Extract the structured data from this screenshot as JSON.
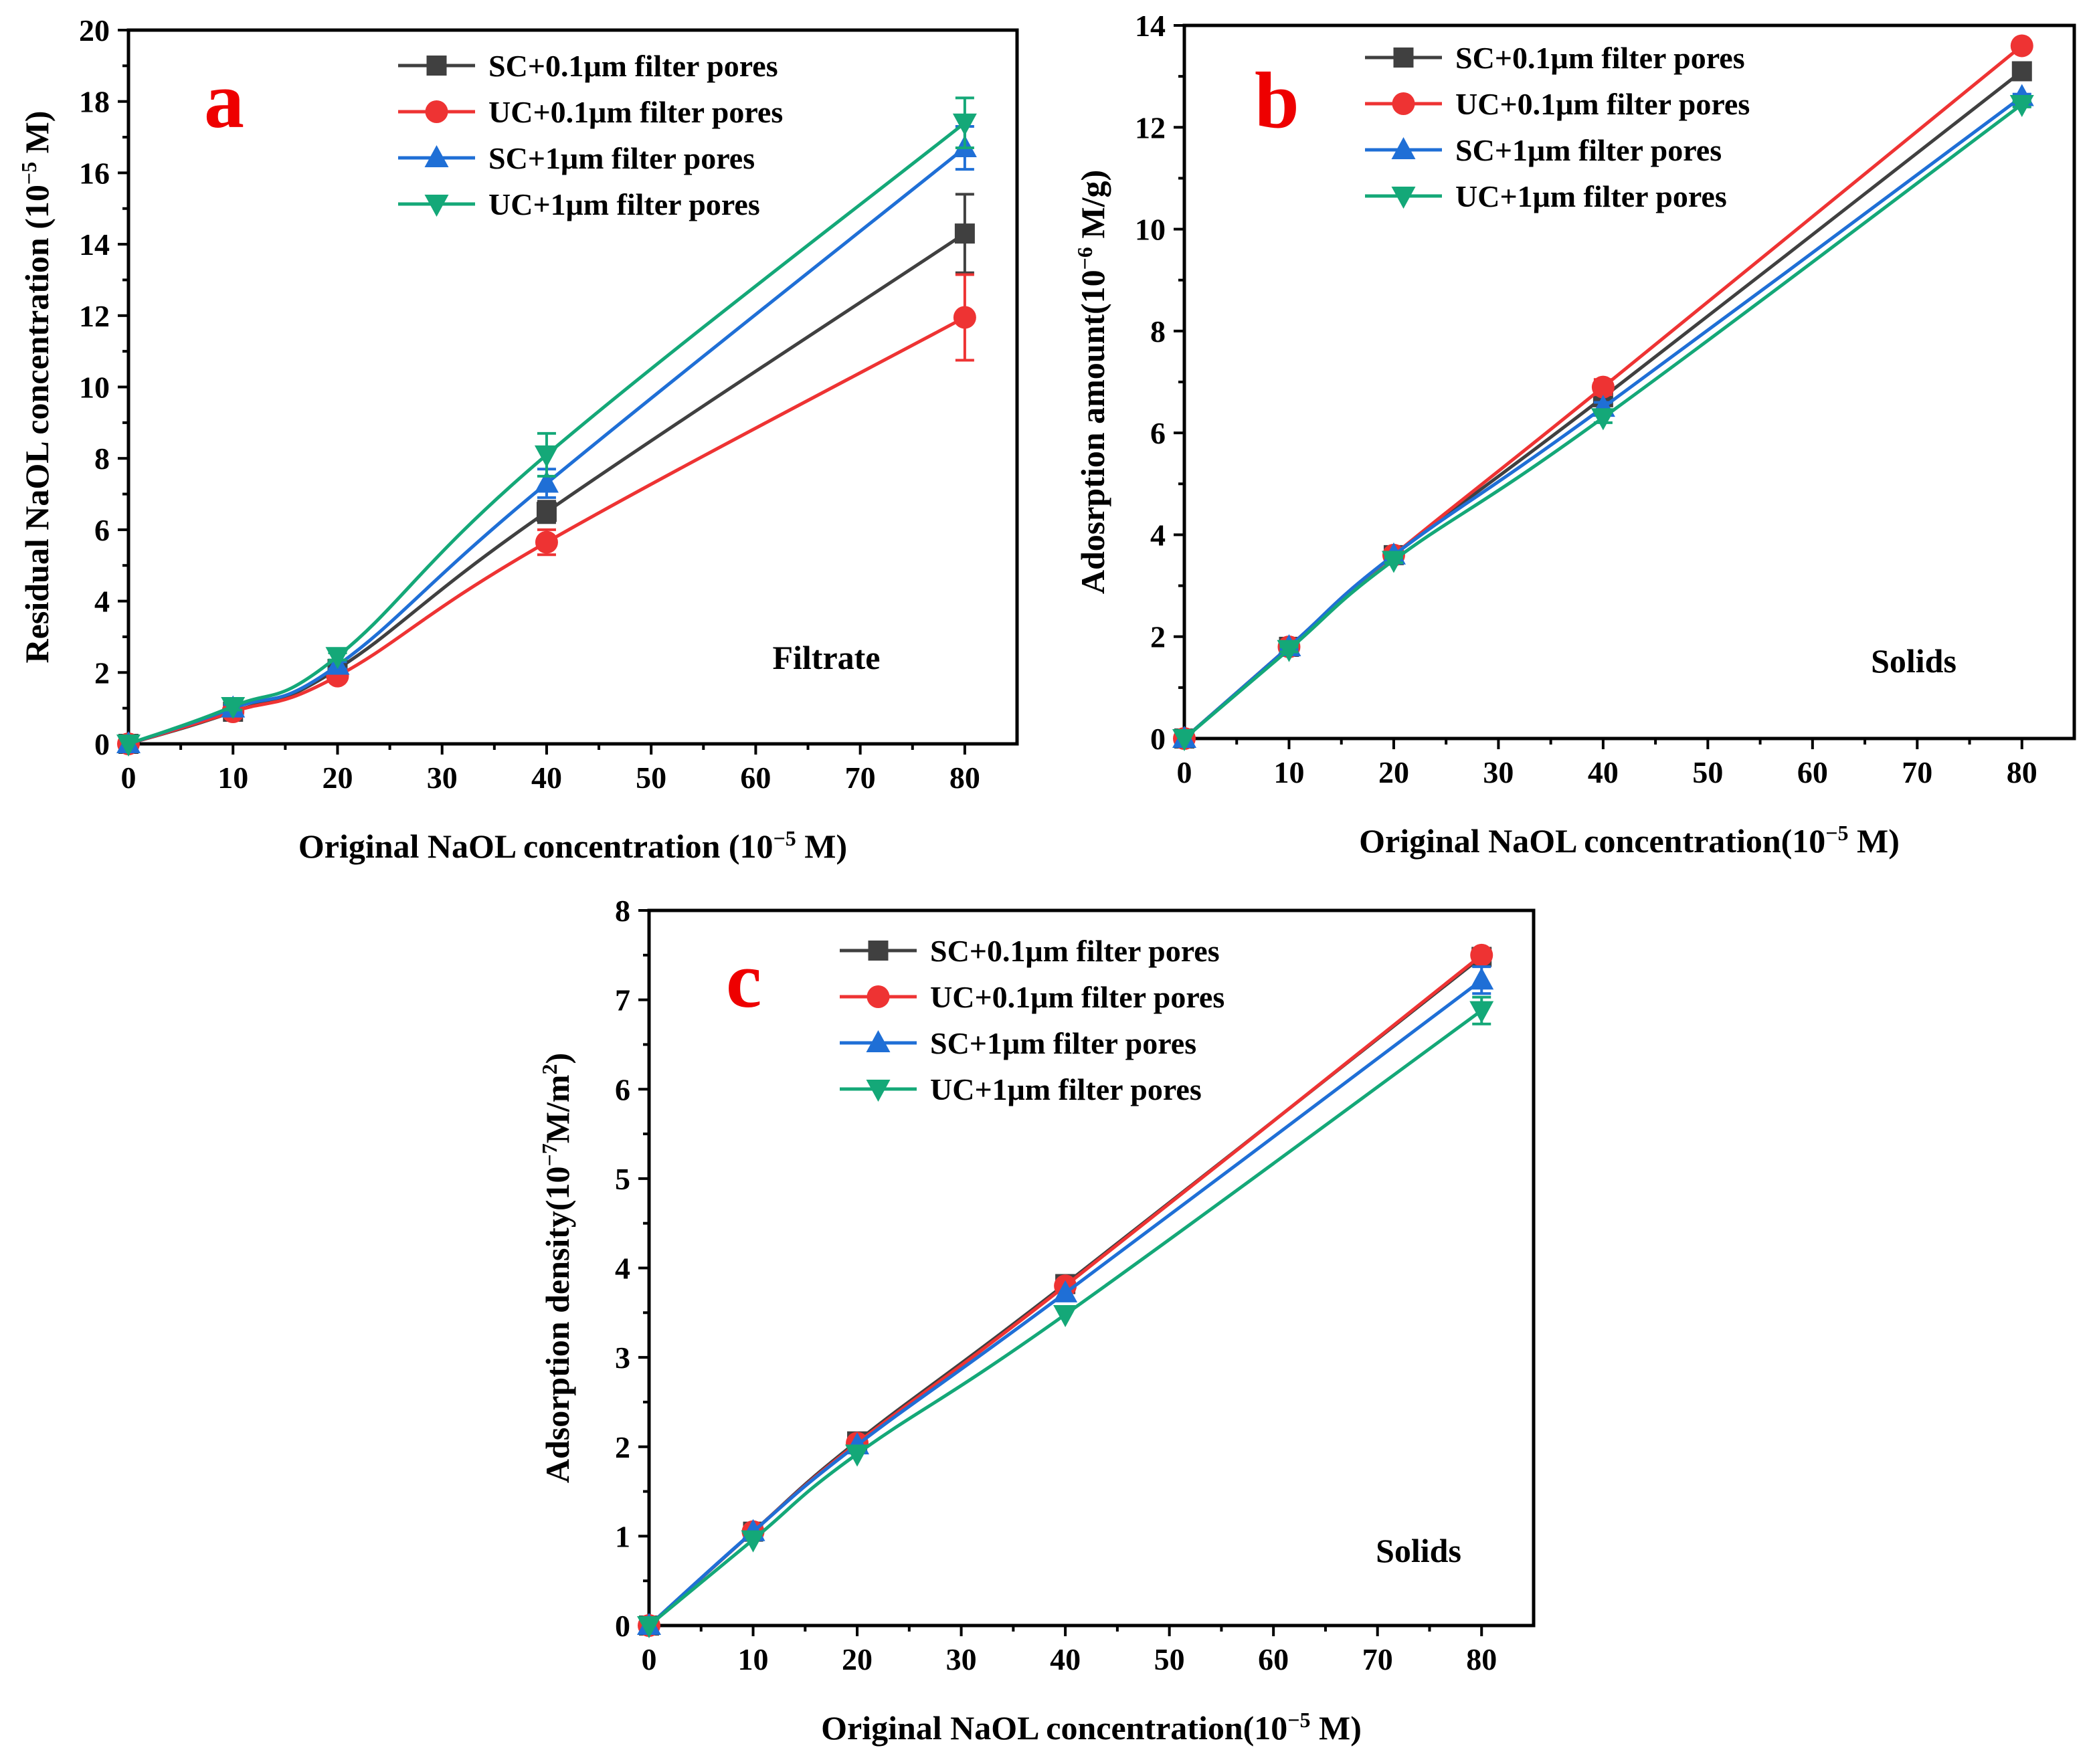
{
  "colors": {
    "SC01": "#404040",
    "UC01": "#ee3333",
    "SC1": "#1f6fd6",
    "UC1": "#14a878"
  },
  "chart_data": [
    {
      "panel": "a",
      "type": "line",
      "annotation": "Filtrate",
      "xlabel": "Original NaOL concentration (10",
      "xlabel_sup": "−5",
      "xlabel_tail": " M)",
      "ylabel": "Residual NaOL concentration  (10",
      "ylabel_sup": "−5",
      "ylabel_tail": " M)",
      "xlim": [
        0,
        85
      ],
      "ylim": [
        0,
        20
      ],
      "xticks": [
        0,
        10,
        20,
        30,
        40,
        50,
        60,
        70,
        80
      ],
      "yticks": [
        0,
        2,
        4,
        6,
        8,
        10,
        12,
        14,
        16,
        18,
        20
      ],
      "x": [
        0,
        10,
        20,
        40,
        80
      ],
      "legend_position": "top-center",
      "series": [
        {
          "name": "SC+0.1μm filter pores",
          "color": "#404040",
          "marker": "square",
          "values": [
            0,
            0.9,
            2.1,
            6.5,
            14.3
          ],
          "errors": [
            0,
            0.1,
            0.1,
            0.3,
            1.1
          ]
        },
        {
          "name": "UC+0.1μm filter pores",
          "color": "#ee3333",
          "marker": "circle",
          "values": [
            0,
            0.9,
            1.9,
            5.65,
            11.95
          ],
          "errors": [
            0,
            0.1,
            0.1,
            0.35,
            1.2
          ]
        },
        {
          "name": "SC+1μm filter pores",
          "color": "#1f6fd6",
          "marker": "triangle-up",
          "values": [
            0,
            1.0,
            2.2,
            7.3,
            16.7
          ],
          "errors": [
            0,
            0.1,
            0.1,
            0.4,
            0.6
          ]
        },
        {
          "name": "UC+1μm filter pores",
          "color": "#14a878",
          "marker": "triangle-down",
          "values": [
            0,
            1.05,
            2.45,
            8.1,
            17.4
          ],
          "errors": [
            0,
            0.1,
            0.1,
            0.6,
            0.7
          ]
        }
      ]
    },
    {
      "panel": "b",
      "type": "line",
      "annotation": "Solids",
      "xlabel": "Original NaOL concentration(10",
      "xlabel_sup": "−5",
      "xlabel_tail": " M)",
      "ylabel": "Adosrption amount(10",
      "ylabel_sup": "−6",
      "ylabel_tail": " M/g)",
      "xlim": [
        0,
        85
      ],
      "ylim": [
        0,
        14
      ],
      "xticks": [
        0,
        10,
        20,
        30,
        40,
        50,
        60,
        70,
        80
      ],
      "yticks": [
        0,
        2,
        4,
        6,
        8,
        10,
        12,
        14
      ],
      "x": [
        0,
        10,
        20,
        40,
        80
      ],
      "legend_position": "top-center",
      "series": [
        {
          "name": "SC+0.1μm filter pores",
          "color": "#404040",
          "marker": "square",
          "values": [
            0,
            1.8,
            3.6,
            6.7,
            13.1
          ],
          "errors": [
            0,
            0.05,
            0.05,
            0.1,
            0.05
          ]
        },
        {
          "name": "UC+0.1μm filter pores",
          "color": "#ee3333",
          "marker": "circle",
          "values": [
            0,
            1.8,
            3.6,
            6.9,
            13.6
          ],
          "errors": [
            0,
            0.05,
            0.05,
            0.15,
            0.05
          ]
        },
        {
          "name": "SC+1μm filter pores",
          "color": "#1f6fd6",
          "marker": "triangle-up",
          "values": [
            0,
            1.8,
            3.6,
            6.5,
            12.6
          ],
          "errors": [
            0,
            0.05,
            0.05,
            0.1,
            0.05
          ]
        },
        {
          "name": "UC+1μm filter pores",
          "color": "#14a878",
          "marker": "triangle-down",
          "values": [
            0,
            1.75,
            3.5,
            6.3,
            12.45
          ],
          "errors": [
            0,
            0.05,
            0.05,
            0.1,
            0.05
          ]
        }
      ]
    },
    {
      "panel": "c",
      "type": "line",
      "annotation": "Solids",
      "xlabel": "Original NaOL concentration(10",
      "xlabel_sup": "−5",
      "xlabel_tail": " M)",
      "ylabel": "Adsorption density(10",
      "ylabel_sup": "−7",
      "ylabel_tail": "M/m",
      "ylabel_sup2": "2",
      "ylabel_tail2": ")",
      "xlim": [
        0,
        85
      ],
      "ylim": [
        0,
        8
      ],
      "xticks": [
        0,
        10,
        20,
        30,
        40,
        50,
        60,
        70,
        80
      ],
      "yticks": [
        0,
        1,
        2,
        3,
        4,
        5,
        6,
        7,
        8
      ],
      "x": [
        0,
        10,
        20,
        40,
        80
      ],
      "legend_position": "top-center",
      "series": [
        {
          "name": "SC+0.1μm filter pores",
          "color": "#404040",
          "marker": "square",
          "values": [
            0,
            1.05,
            2.06,
            3.82,
            7.48
          ],
          "errors": [
            0,
            0.03,
            0.03,
            0.04,
            0.05
          ]
        },
        {
          "name": "UC+0.1μm filter pores",
          "color": "#ee3333",
          "marker": "circle",
          "values": [
            0,
            1.05,
            2.04,
            3.8,
            7.5
          ],
          "errors": [
            0,
            0.03,
            0.03,
            0.04,
            0.05
          ]
        },
        {
          "name": "SC+1μm filter pores",
          "color": "#1f6fd6",
          "marker": "triangle-up",
          "values": [
            0,
            1.05,
            2.02,
            3.72,
            7.22
          ],
          "errors": [
            0,
            0.03,
            0.03,
            0.04,
            0.15
          ]
        },
        {
          "name": "UC+1μm filter pores",
          "color": "#14a878",
          "marker": "triangle-down",
          "values": [
            0,
            0.96,
            1.92,
            3.48,
            6.88
          ],
          "errors": [
            0,
            0.03,
            0.03,
            0.04,
            0.15
          ]
        }
      ]
    }
  ]
}
